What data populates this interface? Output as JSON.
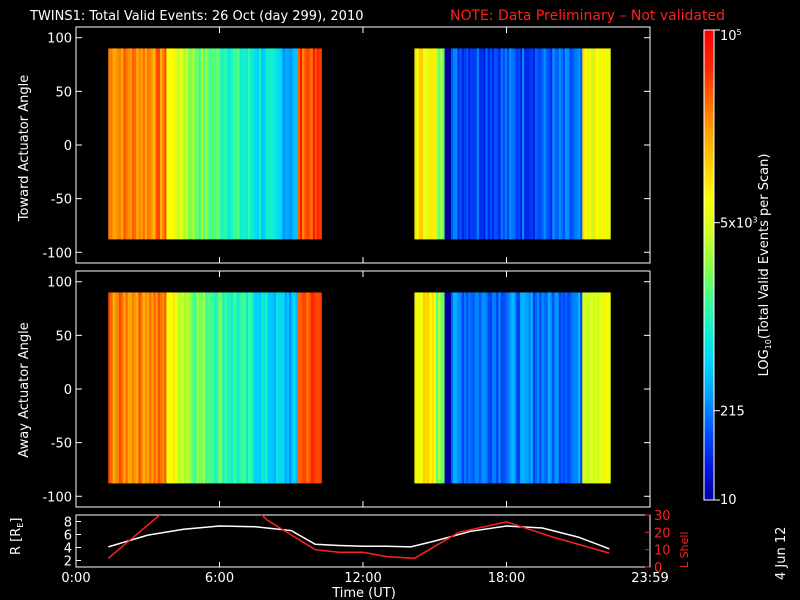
{
  "title": {
    "main": "TWINS1: Total Valid Events: 26 Oct (day 299), 2010",
    "note": "NOTE: Data Preliminary – Not validated"
  },
  "stamp": "4 Jun 12",
  "colors": {
    "note": "#ff2020",
    "background": "#000000",
    "axes": "#ffffff"
  },
  "chart_data": [
    {
      "type": "heatmap",
      "panel": "toward",
      "ylabel": "Toward Actuator Angle",
      "ylim": [
        -110,
        110
      ],
      "yticks": [
        100,
        50,
        0,
        -50,
        -100
      ],
      "y_data_range": [
        -88,
        90
      ],
      "x_data_range_ut_hours": [
        [
          1.35,
          10.2
        ],
        [
          14.15,
          22.3
        ]
      ],
      "note": "log10 counts per scan shown as color"
    },
    {
      "type": "heatmap",
      "panel": "away",
      "ylabel": "Away Actuator Angle",
      "ylim": [
        -110,
        110
      ],
      "yticks": [
        100,
        50,
        0,
        -50,
        -100
      ],
      "y_data_range": [
        -88,
        90
      ],
      "x_data_range_ut_hours": [
        [
          1.35,
          10.2
        ],
        [
          14.15,
          22.3
        ]
      ]
    },
    {
      "type": "line",
      "panel": "ephemeris",
      "xlabel": "Time (UT)",
      "xlim": [
        0,
        24
      ],
      "xtick_labels": [
        "0:00",
        "6:00",
        "12:00",
        "18:00",
        "23:59"
      ],
      "ylabel_left": "R [R",
      "ylabel_left_sub": "E",
      "ylabel_left_end": "]",
      "ylim_left": [
        1,
        9
      ],
      "yticks_left": [
        "8",
        "6",
        "4",
        "2"
      ],
      "ylabel_right": "L Shell",
      "ylim_right": [
        0,
        30
      ],
      "yticks_right": [
        "30",
        "20",
        "10",
        "0"
      ],
      "series": [
        {
          "axis": "left",
          "color": "#ffffff",
          "x": [
            1.35,
            3,
            4.5,
            6,
            7.5,
            9,
            10,
            11,
            12,
            13,
            14,
            15,
            16.5,
            18,
            19.5,
            21,
            22.3
          ],
          "y": [
            4.1,
            5.9,
            6.8,
            7.3,
            7.2,
            6.6,
            4.5,
            4.3,
            4.2,
            4.2,
            4.1,
            5.0,
            6.5,
            7.3,
            7.0,
            5.6,
            3.8
          ]
        },
        {
          "axis": "right",
          "color": "#ff2020",
          "x": [
            1.35,
            3.5,
            3.6,
            7.7,
            8,
            10,
            11,
            12,
            13,
            14.15,
            16,
            18,
            20,
            22.3
          ],
          "y": [
            5,
            30,
            31,
            31,
            27,
            10,
            8.5,
            8.5,
            6,
            5,
            20,
            26,
            17,
            8
          ]
        }
      ]
    }
  ],
  "colorbar": {
    "label_main": "LOG",
    "label_sub": "10",
    "label_rest": "(Total Valid Events per Scan)",
    "ticks": [
      {
        "label": "5x10",
        "exp": "3",
        "frac": 0.59
      },
      {
        "label": "215",
        "exp": "",
        "frac": 0.19
      },
      {
        "label": "10",
        "exp": "",
        "frac": 0.0
      },
      {
        "label": "10",
        "exp": "5",
        "frac": 1.0
      }
    ],
    "colors": [
      "#0000a0",
      "#0018e0",
      "#0050ff",
      "#0098ff",
      "#00d0ff",
      "#10f0d0",
      "#40ff90",
      "#90ff40",
      "#d0ff20",
      "#ffff00",
      "#ffd000",
      "#ffa000",
      "#ff6000",
      "#ff2000",
      "#ff0000"
    ]
  }
}
